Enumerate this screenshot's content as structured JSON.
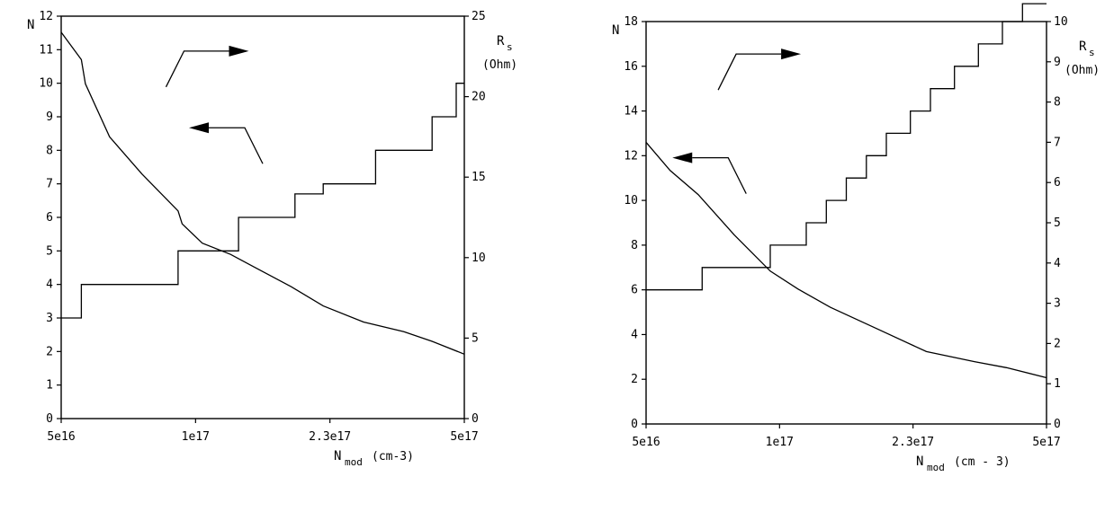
{
  "chart_data": [
    {
      "type": "line",
      "xlabel_main": "N",
      "xlabel_sub": "mod",
      "xlabel_unit": "(cm-3)",
      "ylabel_left": "N",
      "ylabel_right_main": "R",
      "ylabel_right_sub": "s",
      "ylabel_right_unit": "(Ohm)",
      "x_tick_labels": [
        "5e16",
        "1e17",
        "2.3e17",
        "5e17"
      ],
      "y_left_range": [
        0,
        12
      ],
      "y_left_ticks": [
        "0",
        "1",
        "2",
        "3",
        "4",
        "5",
        "6",
        "7",
        "8",
        "9",
        "10",
        "11",
        "12"
      ],
      "y_right_range": [
        0,
        25
      ],
      "y_right_ticks": [
        "0",
        "5",
        "10",
        "15",
        "20",
        "25"
      ],
      "series": [
        {
          "axis": "left",
          "style": "step",
          "x": [
            0,
            0.05,
            0.05,
            0.29,
            0.29,
            0.44,
            0.44,
            0.58,
            0.58,
            0.65,
            0.65,
            0.78,
            0.78,
            0.92,
            0.92,
            0.98,
            0.98,
            1.0
          ],
          "y": [
            3,
            3,
            4,
            4,
            5,
            5,
            6,
            6,
            6.7,
            6.7,
            7,
            7,
            8,
            8,
            9,
            9,
            10,
            10
          ]
        },
        {
          "axis": "right",
          "style": "line",
          "x": [
            0,
            0.05,
            0.06,
            0.12,
            0.2,
            0.29,
            0.3,
            0.35,
            0.42,
            0.48,
            0.57,
            0.65,
            0.75,
            0.85,
            0.92,
            1.0
          ],
          "y": [
            24.0,
            22.3,
            20.8,
            17.5,
            15.2,
            12.9,
            12.1,
            10.9,
            10.2,
            9.4,
            8.2,
            7.0,
            6.0,
            5.4,
            4.8,
            4.0
          ]
        }
      ],
      "annotations": [
        {
          "target_axis": "right",
          "direction": "right",
          "at_x": 0.26,
          "at_y_right": 20.6
        },
        {
          "target_axis": "left",
          "direction": "left",
          "at_x": 0.5,
          "at_y_left": 7.6
        }
      ]
    },
    {
      "type": "line",
      "xlabel_main": "N",
      "xlabel_sub": "mod",
      "xlabel_unit": "(cm - 3)",
      "ylabel_left": "N",
      "ylabel_right_main": "R",
      "ylabel_right_sub": "s",
      "ylabel_right_unit": "(Ohm)",
      "x_tick_labels": [
        "5e16",
        "1e17",
        "2.3e17",
        "5e17"
      ],
      "y_left_range": [
        0,
        18
      ],
      "y_left_ticks": [
        "0",
        "2",
        "4",
        "6",
        "8",
        "10",
        "12",
        "14",
        "16",
        "18"
      ],
      "y_right_range": [
        0,
        10
      ],
      "y_right_ticks": [
        "0",
        "1",
        "2",
        "3",
        "4",
        "5",
        "6",
        "7",
        "8",
        "9",
        "10"
      ],
      "series": [
        {
          "axis": "left",
          "style": "step",
          "x": [
            0,
            0.14,
            0.14,
            0.31,
            0.31,
            0.4,
            0.4,
            0.45,
            0.45,
            0.5,
            0.5,
            0.55,
            0.55,
            0.6,
            0.6,
            0.66,
            0.66,
            0.71,
            0.71,
            0.77,
            0.77,
            0.83,
            0.83,
            0.89,
            0.89,
            0.94,
            0.94,
            1.0
          ],
          "y": [
            6,
            6,
            7,
            7,
            8,
            8,
            9,
            9,
            10,
            10,
            11,
            11,
            12,
            12,
            13,
            13,
            14,
            14,
            15,
            15,
            16,
            16,
            17,
            17,
            18,
            18,
            18.8,
            18.8
          ]
        },
        {
          "axis": "right",
          "style": "line",
          "x": [
            0,
            0.06,
            0.13,
            0.22,
            0.31,
            0.38,
            0.46,
            0.58,
            0.7,
            0.82,
            0.9,
            1.0
          ],
          "y": [
            7.0,
            6.3,
            5.7,
            4.7,
            3.8,
            3.35,
            2.9,
            2.35,
            1.8,
            1.55,
            1.4,
            1.15
          ]
        }
      ],
      "annotations": [
        {
          "target_axis": "right",
          "direction": "right",
          "at_x": 0.18,
          "at_y_right": 8.3
        },
        {
          "target_axis": "left",
          "direction": "left",
          "at_x": 0.25,
          "at_y_left": 10.3
        }
      ]
    }
  ]
}
